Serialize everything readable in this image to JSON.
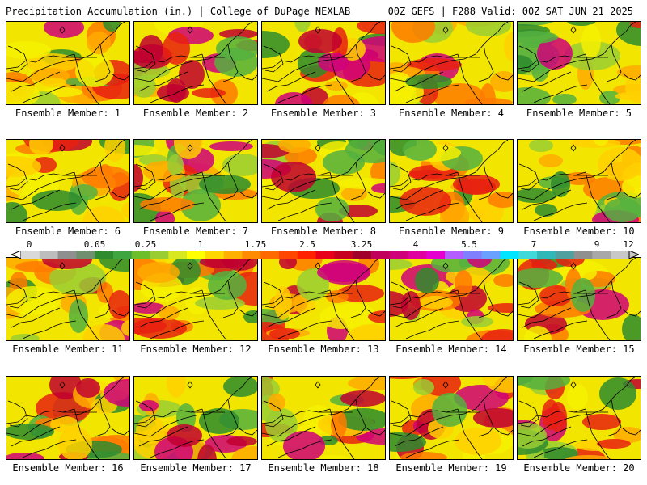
{
  "header": {
    "title": "Precipitation Accumulation (in.) | College of DuPage NEXLAB",
    "run_info": "00Z GEFS | F288 Valid: 00Z SAT JUN 21 2025"
  },
  "panels": [
    {
      "label": "Ensemble Member: 1"
    },
    {
      "label": "Ensemble Member: 2"
    },
    {
      "label": "Ensemble Member: 3"
    },
    {
      "label": "Ensemble Member: 4"
    },
    {
      "label": "Ensemble Member: 5"
    },
    {
      "label": "Ensemble Member: 6"
    },
    {
      "label": "Ensemble Member: 7"
    },
    {
      "label": "Ensemble Member: 8"
    },
    {
      "label": "Ensemble Member: 9"
    },
    {
      "label": "Ensemble Member: 10"
    },
    {
      "label": "Ensemble Member: 11"
    },
    {
      "label": "Ensemble Member: 12"
    },
    {
      "label": "Ensemble Member: 13"
    },
    {
      "label": "Ensemble Member: 14"
    },
    {
      "label": "Ensemble Member: 15"
    },
    {
      "label": "Ensemble Member: 16"
    },
    {
      "label": "Ensemble Member: 17"
    },
    {
      "label": "Ensemble Member: 18"
    },
    {
      "label": "Ensemble Member: 19"
    },
    {
      "label": "Ensemble Member: 20"
    }
  ],
  "colorbar": {
    "labels": [
      "0",
      "0.05",
      "0.25",
      "1",
      "1.75",
      "2.5",
      "3.25",
      "4",
      "5.5",
      "7",
      "9",
      "12"
    ],
    "colors": [
      "#d9d9d9",
      "#bdbdbd",
      "#8f8f8f",
      "#6f8f6f",
      "#2e8b2e",
      "#3fa53f",
      "#6cbf2b",
      "#9acd32",
      "#d8e820",
      "#ffff00",
      "#ffd700",
      "#ffb000",
      "#ff8c00",
      "#ff6a00",
      "#ff4500",
      "#ff2000",
      "#e8001a",
      "#c80020",
      "#a0002a",
      "#c0005a",
      "#d0007a",
      "#e000a0",
      "#e600d0",
      "#b45cff",
      "#8080ff",
      "#6aa0ff",
      "#00e5ff",
      "#40d8d8",
      "#30b8b8",
      "#50a0a0",
      "#909090",
      "#a8a8a8",
      "#c8c8c8"
    ]
  }
}
